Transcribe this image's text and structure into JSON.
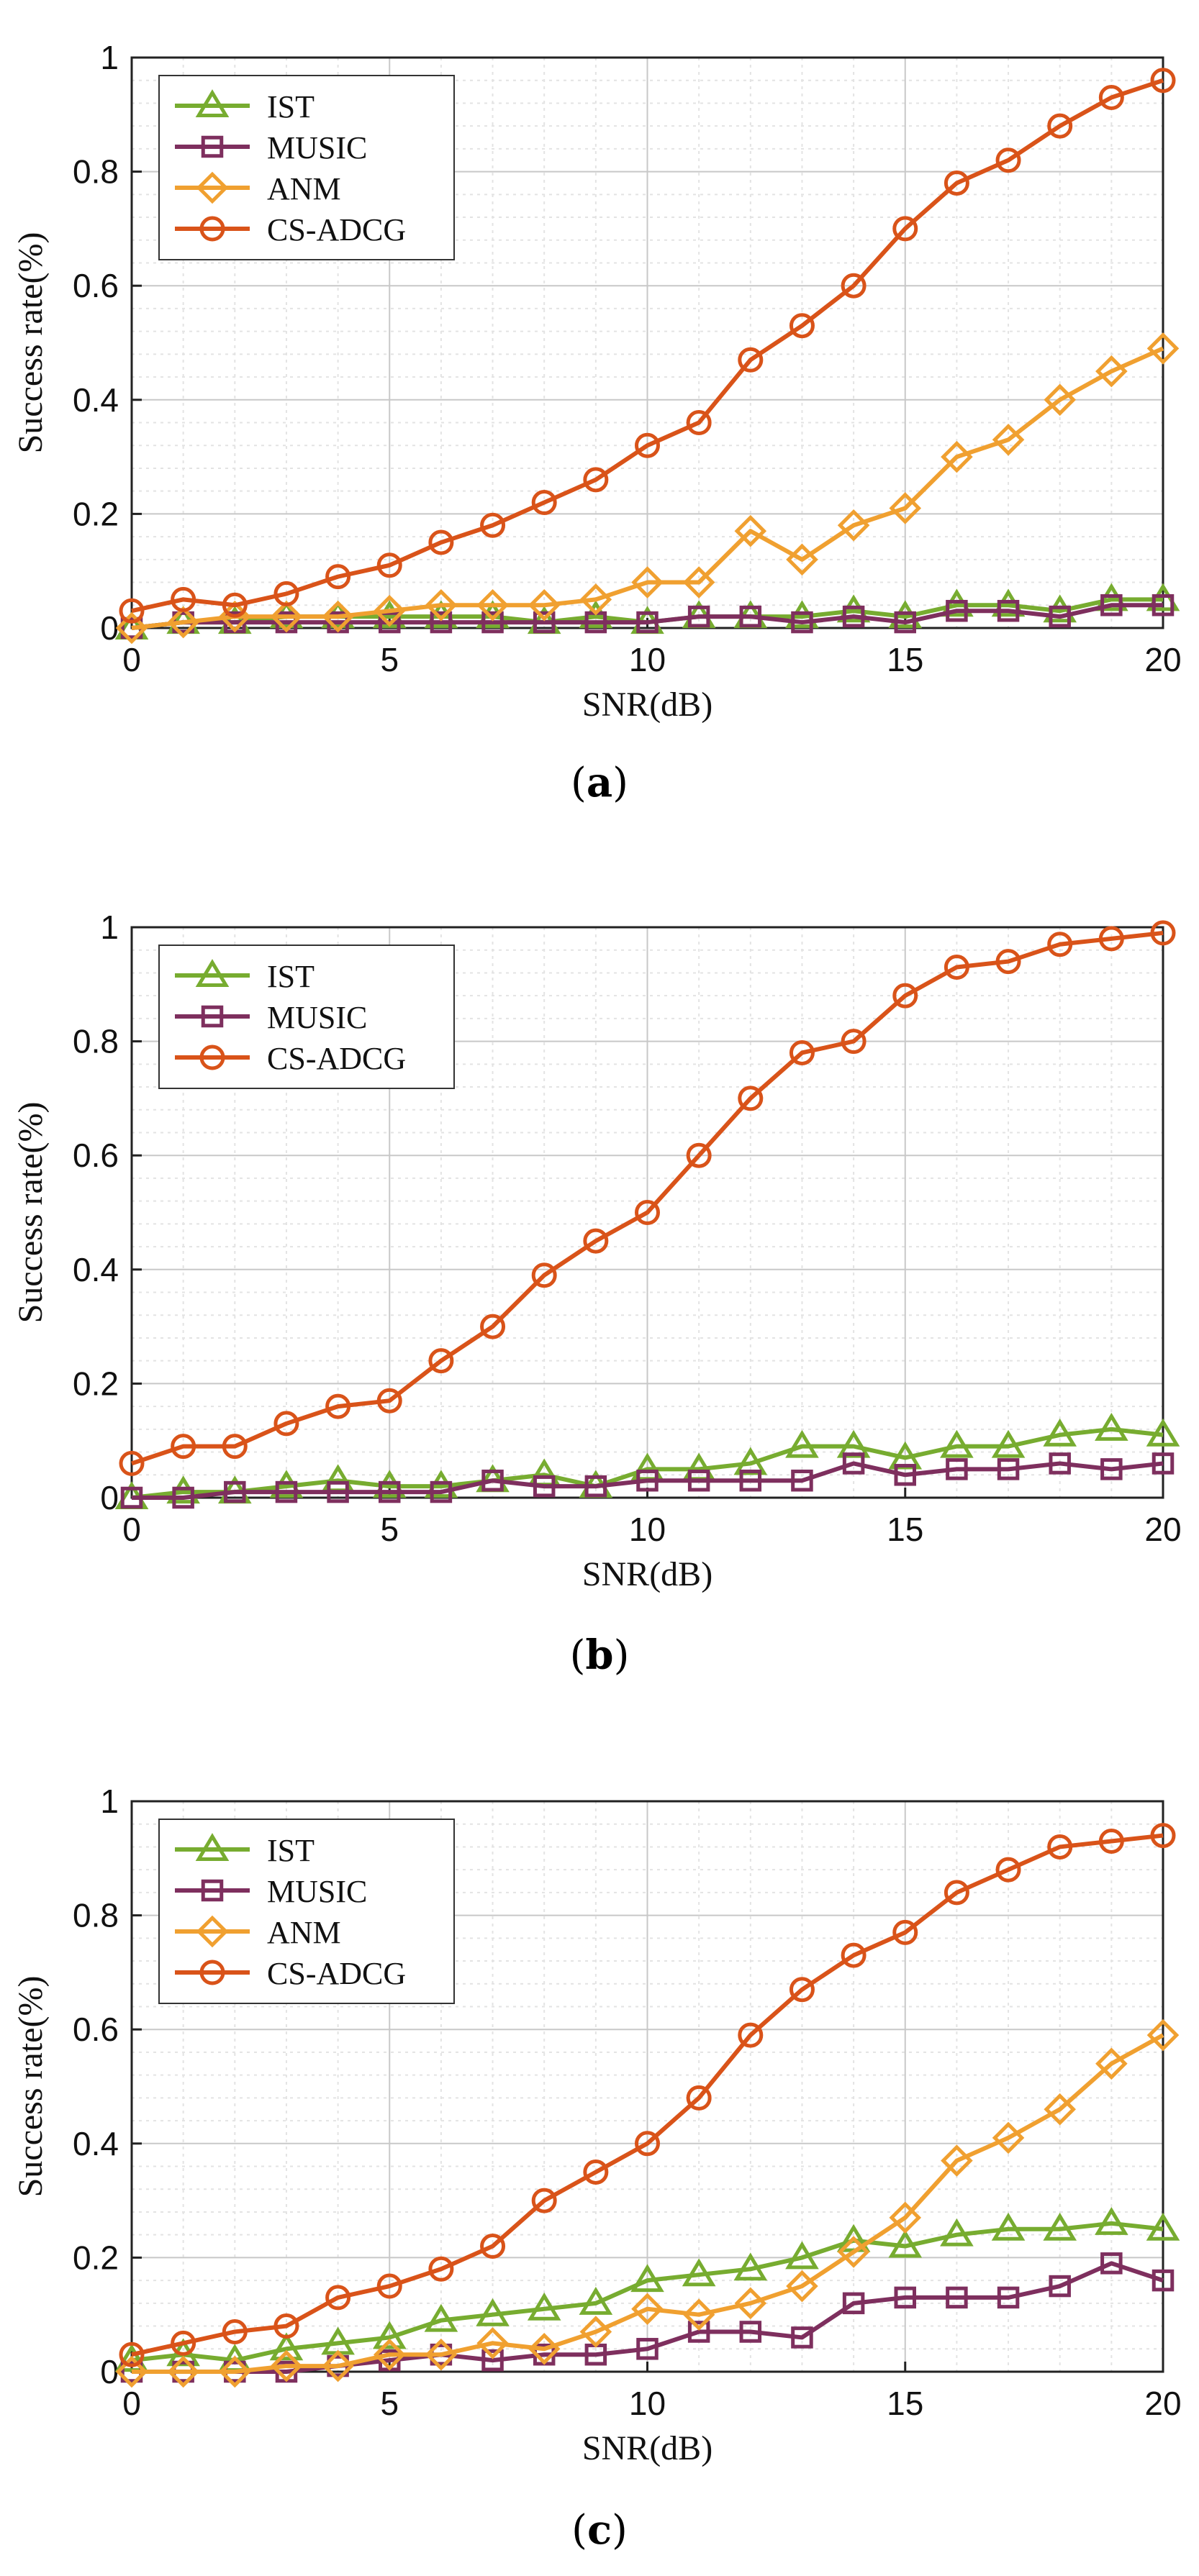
{
  "colors": {
    "IST": "#77ac30",
    "MUSIC": "#7e2f5e",
    "ANM": "#f0a030",
    "CS-ADCG": "#d95319",
    "grid_major": "#c8c8c8",
    "grid_minor": "#e3e3e3",
    "axis": "#222222"
  },
  "chart_data": [
    {
      "type": "line",
      "panel_label": "a",
      "xlabel": "SNR(dB)",
      "ylabel": "Success rate(%)",
      "xlim": [
        0,
        20
      ],
      "ylim": [
        0,
        1
      ],
      "xticks": [
        0,
        5,
        10,
        15,
        20
      ],
      "yticks": [
        0,
        0.2,
        0.4,
        0.6,
        0.8,
        1
      ],
      "ytick_labels": [
        "0",
        "0.2",
        "0.4",
        "0.6",
        "0.8",
        "1"
      ],
      "legend_position": "top-left",
      "x": [
        0,
        1,
        2,
        3,
        4,
        5,
        6,
        7,
        8,
        9,
        10,
        11,
        12,
        13,
        14,
        15,
        16,
        17,
        18,
        19,
        20
      ],
      "series": [
        {
          "name": "IST",
          "marker": "triangle",
          "values": [
            0.0,
            0.01,
            0.01,
            0.02,
            0.02,
            0.02,
            0.02,
            0.02,
            0.01,
            0.02,
            0.01,
            0.02,
            0.02,
            0.02,
            0.03,
            0.02,
            0.04,
            0.04,
            0.03,
            0.05,
            0.05
          ]
        },
        {
          "name": "MUSIC",
          "marker": "square",
          "values": [
            0.0,
            0.01,
            0.01,
            0.01,
            0.01,
            0.01,
            0.01,
            0.01,
            0.01,
            0.01,
            0.01,
            0.02,
            0.02,
            0.01,
            0.02,
            0.01,
            0.03,
            0.03,
            0.02,
            0.04,
            0.04
          ]
        },
        {
          "name": "ANM",
          "marker": "diamond",
          "values": [
            0.0,
            0.01,
            0.02,
            0.02,
            0.02,
            0.03,
            0.04,
            0.04,
            0.04,
            0.05,
            0.08,
            0.08,
            0.17,
            0.12,
            0.18,
            0.21,
            0.3,
            0.33,
            0.4,
            0.45,
            0.49
          ]
        },
        {
          "name": "CS-ADCG",
          "marker": "circle",
          "values": [
            0.03,
            0.05,
            0.04,
            0.06,
            0.09,
            0.11,
            0.15,
            0.18,
            0.22,
            0.26,
            0.32,
            0.36,
            0.47,
            0.53,
            0.6,
            0.7,
            0.78,
            0.82,
            0.88,
            0.93,
            0.96
          ]
        }
      ]
    },
    {
      "type": "line",
      "panel_label": "b",
      "xlabel": "SNR(dB)",
      "ylabel": "Success rate(%)",
      "xlim": [
        0,
        20
      ],
      "ylim": [
        0,
        1
      ],
      "xticks": [
        0,
        5,
        10,
        15,
        20
      ],
      "yticks": [
        0,
        0.2,
        0.4,
        0.6,
        0.8,
        1
      ],
      "ytick_labels": [
        "0",
        "0.2",
        "0.4",
        "0.6",
        "0.8",
        "1"
      ],
      "legend_position": "top-left",
      "x": [
        0,
        1,
        2,
        3,
        4,
        5,
        6,
        7,
        8,
        9,
        10,
        11,
        12,
        13,
        14,
        15,
        16,
        17,
        18,
        19,
        20
      ],
      "series": [
        {
          "name": "IST",
          "marker": "triangle",
          "values": [
            0.0,
            0.01,
            0.01,
            0.02,
            0.03,
            0.02,
            0.02,
            0.03,
            0.04,
            0.02,
            0.05,
            0.05,
            0.06,
            0.09,
            0.09,
            0.07,
            0.09,
            0.09,
            0.11,
            0.12,
            0.11
          ]
        },
        {
          "name": "MUSIC",
          "marker": "square",
          "values": [
            0.0,
            0.0,
            0.01,
            0.01,
            0.01,
            0.01,
            0.01,
            0.03,
            0.02,
            0.02,
            0.03,
            0.03,
            0.03,
            0.03,
            0.06,
            0.04,
            0.05,
            0.05,
            0.06,
            0.05,
            0.06
          ]
        },
        {
          "name": "CS-ADCG",
          "marker": "circle",
          "values": [
            0.06,
            0.09,
            0.09,
            0.13,
            0.16,
            0.17,
            0.24,
            0.3,
            0.39,
            0.45,
            0.5,
            0.6,
            0.7,
            0.78,
            0.8,
            0.88,
            0.93,
            0.94,
            0.97,
            0.98,
            0.99
          ]
        }
      ]
    },
    {
      "type": "line",
      "panel_label": "c",
      "xlabel": "SNR(dB)",
      "ylabel": "Success rate(%)",
      "xlim": [
        0,
        20
      ],
      "ylim": [
        0,
        1
      ],
      "xticks": [
        0,
        5,
        10,
        15,
        20
      ],
      "yticks": [
        0,
        0.2,
        0.4,
        0.6,
        0.8,
        1
      ],
      "ytick_labels": [
        "0",
        "0.2",
        "0.4",
        "0.6",
        "0.8",
        "1"
      ],
      "legend_position": "top-left",
      "x": [
        0,
        1,
        2,
        3,
        4,
        5,
        6,
        7,
        8,
        9,
        10,
        11,
        12,
        13,
        14,
        15,
        16,
        17,
        18,
        19,
        20
      ],
      "series": [
        {
          "name": "IST",
          "marker": "triangle",
          "values": [
            0.02,
            0.03,
            0.02,
            0.04,
            0.05,
            0.06,
            0.09,
            0.1,
            0.11,
            0.12,
            0.16,
            0.17,
            0.18,
            0.2,
            0.23,
            0.22,
            0.24,
            0.25,
            0.25,
            0.26,
            0.25
          ]
        },
        {
          "name": "MUSIC",
          "marker": "square",
          "values": [
            0.0,
            0.0,
            0.0,
            0.0,
            0.01,
            0.02,
            0.03,
            0.02,
            0.03,
            0.03,
            0.04,
            0.07,
            0.07,
            0.06,
            0.12,
            0.13,
            0.13,
            0.13,
            0.15,
            0.19,
            0.16
          ]
        },
        {
          "name": "ANM",
          "marker": "diamond",
          "values": [
            0.0,
            0.0,
            0.0,
            0.01,
            0.01,
            0.03,
            0.03,
            0.05,
            0.04,
            0.07,
            0.11,
            0.1,
            0.12,
            0.15,
            0.21,
            0.27,
            0.37,
            0.41,
            0.46,
            0.54,
            0.59
          ]
        },
        {
          "name": "CS-ADCG",
          "marker": "circle",
          "values": [
            0.03,
            0.05,
            0.07,
            0.08,
            0.13,
            0.15,
            0.18,
            0.22,
            0.3,
            0.35,
            0.4,
            0.48,
            0.59,
            0.67,
            0.73,
            0.77,
            0.84,
            0.88,
            0.92,
            0.93,
            0.94
          ]
        }
      ]
    }
  ]
}
